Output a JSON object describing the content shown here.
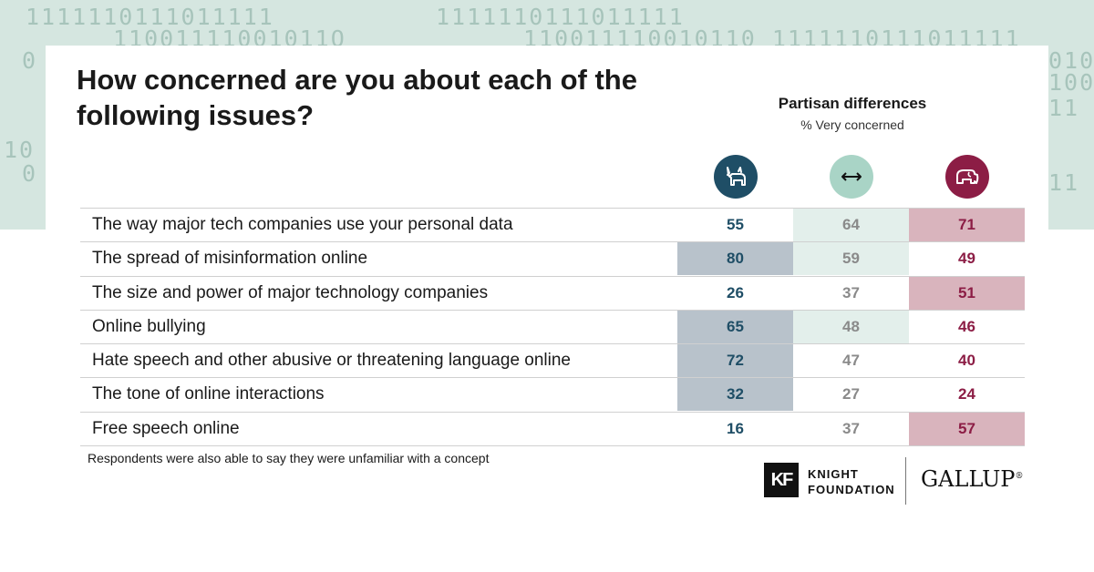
{
  "title": "How concerned are you about each of the following issues?",
  "partisan": {
    "title": "Partisan differences",
    "subtitle": "% Very concerned"
  },
  "icons": {
    "democrat": "donkey-icon",
    "independent": "double-arrow-icon",
    "republican": "elephant-icon"
  },
  "colors": {
    "democrat": "#1f4e66",
    "independent_text": "#8a8a8a",
    "republican": "#8c1d45",
    "dem_highlight": "#b8c2cb",
    "ind_highlight": "#e3efeb",
    "rep_highlight": "#d9b4bd",
    "background_band": "#d5e6e0"
  },
  "chart_data": {
    "type": "table",
    "rows": [
      {
        "issue": "The way major tech companies use your personal data",
        "dem": 55,
        "ind": 64,
        "rep": 71
      },
      {
        "issue": "The spread of misinformation online",
        "dem": 80,
        "ind": 59,
        "rep": 49
      },
      {
        "issue": "The size and power of major technology companies",
        "dem": 26,
        "ind": 37,
        "rep": 51
      },
      {
        "issue": "Online bullying",
        "dem": 65,
        "ind": 48,
        "rep": 46
      },
      {
        "issue": "Hate speech and other abusive or threatening language online",
        "dem": 72,
        "ind": 47,
        "rep": 40
      },
      {
        "issue": "The tone of online interactions",
        "dem": 32,
        "ind": 27,
        "rep": 24
      },
      {
        "issue": "Free speech online",
        "dem": 16,
        "ind": 37,
        "rep": 57
      }
    ],
    "highlights": [
      {
        "dem": false,
        "ind": true,
        "rep": true
      },
      {
        "dem": true,
        "ind": true,
        "rep": false
      },
      {
        "dem": false,
        "ind": false,
        "rep": true
      },
      {
        "dem": true,
        "ind": true,
        "rep": false
      },
      {
        "dem": true,
        "ind": false,
        "rep": false
      },
      {
        "dem": true,
        "ind": false,
        "rep": false
      },
      {
        "dem": false,
        "ind": false,
        "rep": true
      }
    ]
  },
  "note": "Respondents were also able to say they were unfamiliar with a concept",
  "logos": {
    "knight_mark": "KF",
    "knight_line1": "KNIGHT",
    "knight_line2": "FOUNDATION",
    "gallup": "GALLUP",
    "gallup_mark": "®"
  },
  "background_binary": [
    "1111110111011111",
    "11001111001011O",
    "1111110111011111",
    "110011110010110  1111110111011111",
    "0",
    "010",
    "100",
    "11",
    "10",
    "0",
    "11"
  ]
}
